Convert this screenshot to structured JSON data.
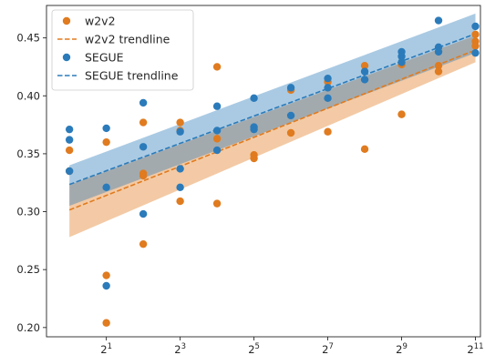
{
  "chart_data": {
    "type": "scatter",
    "title": "",
    "xlabel": "",
    "ylabel": "",
    "x_scale": "log2",
    "xlim": [
      0.65,
      2250
    ],
    "ylim": [
      0.192,
      0.478
    ],
    "x_ticks": [
      2,
      8,
      32,
      128,
      512,
      2048
    ],
    "x_tick_labels": [
      {
        "base": "2",
        "exp": "1"
      },
      {
        "base": "2",
        "exp": "3"
      },
      {
        "base": "2",
        "exp": "5"
      },
      {
        "base": "2",
        "exp": "7"
      },
      {
        "base": "2",
        "exp": "9"
      },
      {
        "base": "2",
        "exp": "11"
      }
    ],
    "y_ticks": [
      0.2,
      0.25,
      0.3,
      0.35,
      0.4,
      0.45
    ],
    "y_tick_labels": [
      "0.20",
      "0.25",
      "0.30",
      "0.35",
      "0.40",
      "0.45"
    ],
    "grid": false,
    "legend_position": "top-left",
    "series": [
      {
        "name": "w2v2",
        "kind": "scatter",
        "color": "#e07b1f",
        "points": [
          [
            1,
            0.353
          ],
          [
            1,
            0.335
          ],
          [
            2,
            0.36
          ],
          [
            2,
            0.245
          ],
          [
            2,
            0.204
          ],
          [
            4,
            0.377
          ],
          [
            4,
            0.333
          ],
          [
            4,
            0.331
          ],
          [
            4,
            0.272
          ],
          [
            8,
            0.377
          ],
          [
            8,
            0.37
          ],
          [
            8,
            0.309
          ],
          [
            16,
            0.425
          ],
          [
            16,
            0.363
          ],
          [
            16,
            0.307
          ],
          [
            32,
            0.349
          ],
          [
            32,
            0.346
          ],
          [
            64,
            0.405
          ],
          [
            64,
            0.368
          ],
          [
            128,
            0.412
          ],
          [
            128,
            0.369
          ],
          [
            256,
            0.426
          ],
          [
            256,
            0.354
          ],
          [
            512,
            0.427
          ],
          [
            512,
            0.384
          ],
          [
            1024,
            0.426
          ],
          [
            1024,
            0.421
          ],
          [
            2048,
            0.453
          ],
          [
            2048,
            0.447
          ],
          [
            2048,
            0.443
          ]
        ]
      },
      {
        "name": "w2v2 trendline",
        "kind": "trendline",
        "color": "#e07b1f",
        "x": [
          1,
          2048
        ],
        "y": [
          0.3015,
          0.4395
        ],
        "band_low": [
          0.278,
          0.429
        ],
        "band_high": [
          0.323,
          0.452
        ]
      },
      {
        "name": "SEGUE",
        "kind": "scatter",
        "color": "#2b7bba",
        "points": [
          [
            1,
            0.371
          ],
          [
            1,
            0.362
          ],
          [
            1,
            0.335
          ],
          [
            2,
            0.372
          ],
          [
            2,
            0.321
          ],
          [
            2,
            0.236
          ],
          [
            4,
            0.394
          ],
          [
            4,
            0.356
          ],
          [
            4,
            0.298
          ],
          [
            8,
            0.369
          ],
          [
            8,
            0.337
          ],
          [
            8,
            0.321
          ],
          [
            16,
            0.391
          ],
          [
            16,
            0.37
          ],
          [
            16,
            0.353
          ],
          [
            32,
            0.398
          ],
          [
            32,
            0.373
          ],
          [
            32,
            0.371
          ],
          [
            64,
            0.407
          ],
          [
            64,
            0.383
          ],
          [
            128,
            0.415
          ],
          [
            128,
            0.407
          ],
          [
            128,
            0.398
          ],
          [
            256,
            0.421
          ],
          [
            256,
            0.414
          ],
          [
            512,
            0.438
          ],
          [
            512,
            0.434
          ],
          [
            512,
            0.429
          ],
          [
            1024,
            0.465
          ],
          [
            1024,
            0.442
          ],
          [
            1024,
            0.438
          ],
          [
            2048,
            0.46
          ],
          [
            2048,
            0.437
          ]
        ]
      },
      {
        "name": "SEGUE trendline",
        "kind": "trendline",
        "color": "#2b7bba",
        "x": [
          1,
          2048
        ],
        "y": [
          0.3235,
          0.4535
        ],
        "band_low": [
          0.305,
          0.437
        ],
        "band_high": [
          0.34,
          0.471
        ]
      }
    ]
  }
}
